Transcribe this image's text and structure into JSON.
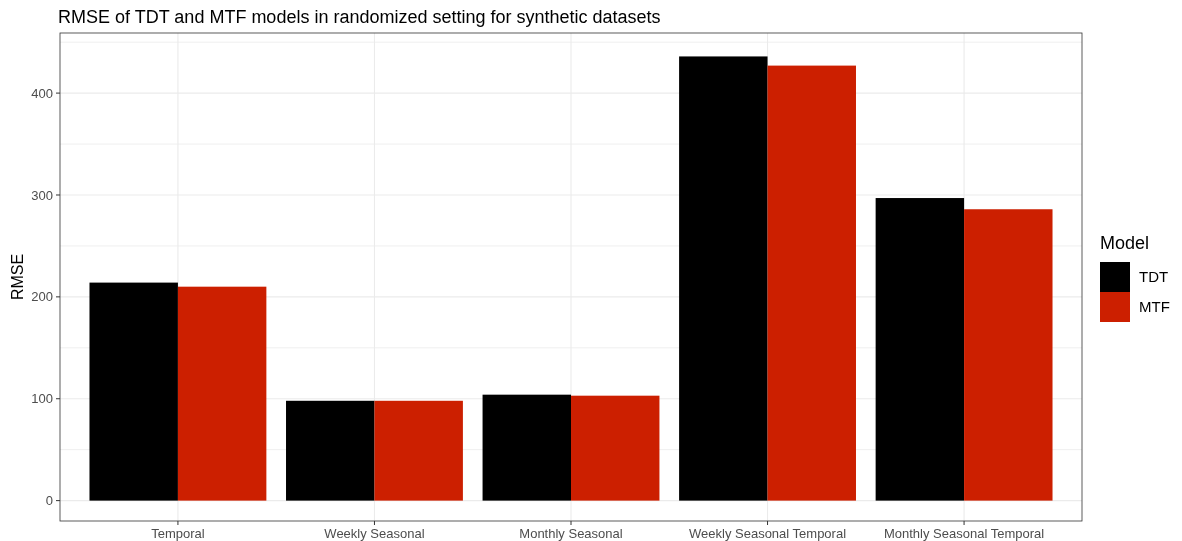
{
  "chart_data": {
    "type": "bar",
    "title": "RMSE of TDT and MTF models in randomized setting for synthetic datasets",
    "ylabel": "RMSE",
    "legend_title": "Model",
    "categories": [
      "Temporal",
      "Weekly Seasonal",
      "Monthly Seasonal",
      "Weekly Seasonal Temporal",
      "Monthly Seasonal Temporal"
    ],
    "series": [
      {
        "name": "TDT",
        "color": "#000000",
        "values": [
          214,
          98,
          104,
          436,
          297
        ]
      },
      {
        "name": "MTF",
        "color": "#cc1f00",
        "values": [
          210,
          98,
          103,
          427,
          286
        ]
      }
    ],
    "ylim": [
      -20,
      459
    ],
    "yticks": [
      0,
      {
        "value": 50,
        "label": null
      },
      100,
      {
        "value": 150,
        "label": null
      },
      200,
      {
        "value": 250,
        "label": null
      },
      300,
      {
        "value": 350,
        "label": null
      },
      400,
      {
        "value": 450,
        "label": null
      }
    ],
    "grid": true,
    "legend": "right"
  }
}
